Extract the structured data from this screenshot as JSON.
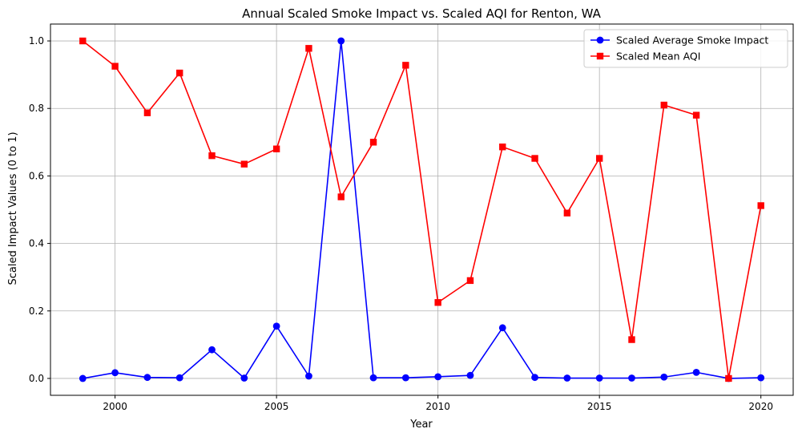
{
  "chart_data": {
    "type": "line",
    "title": "Annual Scaled Smoke Impact vs. Scaled AQI for Renton, WA",
    "xlabel": "Year",
    "ylabel": "Scaled Impact Values (0 to 1)",
    "xlim": [
      1998.0,
      2021.0
    ],
    "ylim": [
      -0.05,
      1.05
    ],
    "x_ticks": [
      2000,
      2005,
      2010,
      2015,
      2020
    ],
    "y_ticks": [
      0.0,
      0.2,
      0.4,
      0.6,
      0.8,
      1.0
    ],
    "y_tick_labels": [
      "0.0",
      "0.2",
      "0.4",
      "0.6",
      "0.8",
      "1.0"
    ],
    "grid": true,
    "legend_position": "top-right",
    "x": [
      1999,
      2000,
      2001,
      2002,
      2003,
      2004,
      2005,
      2006,
      2007,
      2008,
      2009,
      2010,
      2011,
      2012,
      2013,
      2014,
      2015,
      2016,
      2017,
      2018,
      2019,
      2020
    ],
    "series": [
      {
        "name": "Scaled Average Smoke Impact",
        "color": "#0000ff",
        "marker": "circle",
        "values": [
          0.0,
          0.017,
          0.003,
          0.002,
          0.085,
          0.001,
          0.155,
          0.007,
          1.0,
          0.002,
          0.002,
          0.005,
          0.009,
          0.15,
          0.003,
          0.001,
          0.001,
          0.001,
          0.004,
          0.018,
          0.0,
          0.002
        ]
      },
      {
        "name": "Scaled Mean AQI",
        "color": "#ff0000",
        "marker": "square",
        "values": [
          1.0,
          0.925,
          0.787,
          0.905,
          0.66,
          0.635,
          0.68,
          0.978,
          0.538,
          0.7,
          0.928,
          0.225,
          0.29,
          0.686,
          0.652,
          0.49,
          0.652,
          0.115,
          0.81,
          0.78,
          0.0,
          0.512
        ]
      }
    ]
  }
}
